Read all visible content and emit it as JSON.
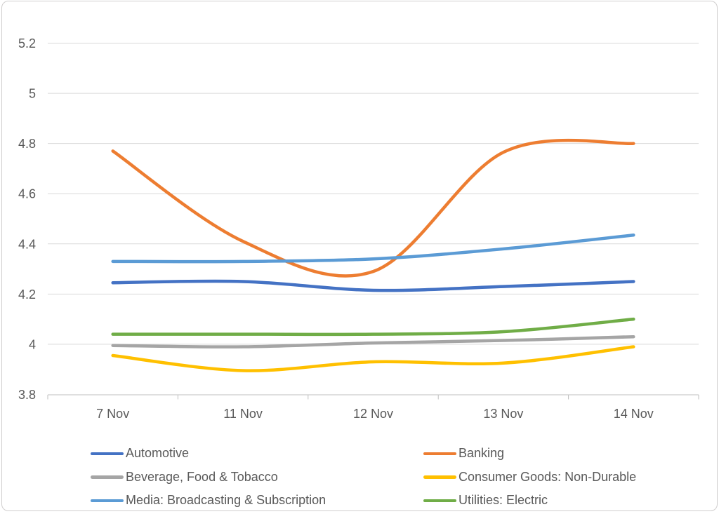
{
  "chart_data": {
    "type": "line",
    "title": "",
    "xlabel": "",
    "ylabel": "",
    "categories": [
      "7 Nov",
      "11 Nov",
      "12 Nov",
      "13 Nov",
      "14 Nov"
    ],
    "series": [
      {
        "name": "Automotive",
        "color": "#4472C4",
        "values": [
          4.245,
          4.25,
          4.215,
          4.23,
          4.25
        ]
      },
      {
        "name": "Banking",
        "color": "#ED7D31",
        "values": [
          4.77,
          4.41,
          4.29,
          4.765,
          4.8
        ]
      },
      {
        "name": "Beverage, Food & Tobacco",
        "color": "#A5A5A5",
        "values": [
          3.995,
          3.99,
          4.005,
          4.015,
          4.03
        ]
      },
      {
        "name": "Consumer Goods: Non-Durable",
        "color": "#FFC000",
        "values": [
          3.955,
          3.895,
          3.93,
          3.925,
          3.99
        ]
      },
      {
        "name": "Media: Broadcasting & Subscription",
        "color": "#5B9BD5",
        "values": [
          4.33,
          4.33,
          4.34,
          4.38,
          4.435
        ]
      },
      {
        "name": "Utilities: Electric",
        "color": "#70AD47",
        "values": [
          4.04,
          4.04,
          4.04,
          4.05,
          4.1
        ]
      }
    ],
    "ylim": [
      3.8,
      5.2
    ],
    "ytick_step": 0.2,
    "ytick_labels": [
      "3.8",
      "4",
      "4.2",
      "4.4",
      "4.6",
      "4.8",
      "5",
      "5.2"
    ],
    "grid": true,
    "line_style": "smooth",
    "legend_position": "bottom",
    "legend_columns": [
      [
        0,
        2,
        4
      ],
      [
        1,
        3,
        5
      ]
    ]
  },
  "style": {
    "grid_color": "#D9D9D9",
    "axis_color": "#BFBFBF",
    "label_color": "#595959",
    "border_color": "#D0CECE",
    "background": "#FFFFFF"
  }
}
